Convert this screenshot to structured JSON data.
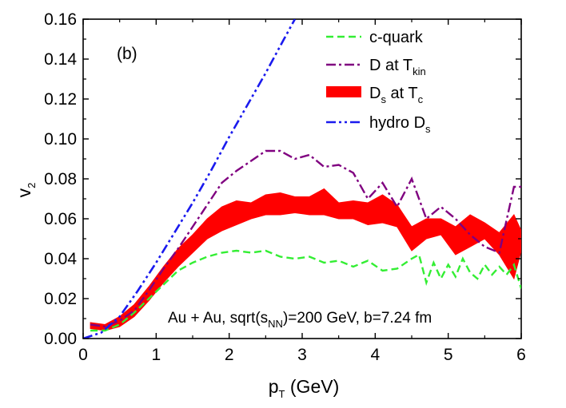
{
  "chart_data": {
    "type": "line",
    "panel_label": "(b)",
    "xlabel_main": "p",
    "xlabel_sub": "T",
    "xlabel_unit": " (GeV)",
    "ylabel_main": "v",
    "ylabel_sub": "2",
    "xlim": [
      0,
      6
    ],
    "ylim": [
      0,
      0.16
    ],
    "x_ticks": [
      0,
      1,
      2,
      3,
      4,
      5,
      6
    ],
    "x_tick_labels": [
      "0",
      "1",
      "2",
      "3",
      "4",
      "5",
      "6"
    ],
    "y_ticks": [
      0,
      0.02,
      0.04,
      0.06,
      0.08,
      0.1,
      0.12,
      0.14,
      0.16
    ],
    "y_tick_labels": [
      "0.00",
      "0.02",
      "0.04",
      "0.06",
      "0.08",
      "0.10",
      "0.12",
      "0.14",
      "0.16"
    ],
    "grid": false,
    "legend_position": "top-right",
    "annotation": {
      "text1": "Au + Au, sqrt(s",
      "sub": "NN",
      "text2": ")=200 GeV, b=7.24 fm"
    },
    "series": [
      {
        "key": "cquark",
        "name": "c-quark",
        "legend_main": "c-quark",
        "legend_sub": "",
        "legend_tail": "",
        "color": "#33ee33",
        "style": "dash",
        "x": [
          0.1,
          0.3,
          0.5,
          0.7,
          0.9,
          1.1,
          1.3,
          1.5,
          1.7,
          1.9,
          2.1,
          2.3,
          2.5,
          2.7,
          2.9,
          3.1,
          3.3,
          3.5,
          3.7,
          3.9,
          4.1,
          4.3,
          4.5,
          4.6,
          4.7,
          4.8,
          4.9,
          5.0,
          5.1,
          5.2,
          5.3,
          5.4,
          5.5,
          5.6,
          5.7,
          5.8,
          5.9,
          6.0
        ],
        "y": [
          0.004,
          0.004,
          0.007,
          0.013,
          0.02,
          0.027,
          0.034,
          0.038,
          0.041,
          0.043,
          0.044,
          0.043,
          0.044,
          0.041,
          0.04,
          0.041,
          0.038,
          0.039,
          0.036,
          0.039,
          0.034,
          0.035,
          0.04,
          0.042,
          0.028,
          0.038,
          0.03,
          0.037,
          0.031,
          0.04,
          0.033,
          0.03,
          0.037,
          0.032,
          0.036,
          0.032,
          0.037,
          0.025
        ]
      },
      {
        "key": "dtkin",
        "name": "D at Tkin",
        "legend_main": "D at T",
        "legend_sub": "kin",
        "legend_tail": "",
        "color": "#800080",
        "style": "dashdot",
        "x": [
          0.1,
          0.3,
          0.5,
          0.7,
          0.9,
          1.1,
          1.3,
          1.5,
          1.7,
          1.9,
          2.1,
          2.3,
          2.5,
          2.7,
          2.9,
          3.1,
          3.3,
          3.5,
          3.7,
          3.9,
          4.1,
          4.3,
          4.5,
          4.7,
          4.9,
          5.1,
          5.3,
          5.5,
          5.7,
          5.9,
          6.0
        ],
        "y": [
          0.007,
          0.006,
          0.009,
          0.014,
          0.024,
          0.035,
          0.045,
          0.056,
          0.067,
          0.078,
          0.084,
          0.089,
          0.094,
          0.094,
          0.09,
          0.092,
          0.086,
          0.087,
          0.083,
          0.07,
          0.078,
          0.066,
          0.08,
          0.06,
          0.066,
          0.06,
          0.052,
          0.046,
          0.043,
          0.076,
          0.076
        ]
      },
      {
        "key": "dstc",
        "name": "Ds at Tc",
        "legend_main": "D",
        "legend_sub": "s",
        "legend_tail": " at T",
        "legend_sub2": "c",
        "color": "#ff0000",
        "style": "band",
        "x": [
          0.1,
          0.3,
          0.5,
          0.7,
          0.9,
          1.1,
          1.3,
          1.5,
          1.7,
          1.9,
          2.1,
          2.3,
          2.5,
          2.7,
          2.9,
          3.1,
          3.3,
          3.5,
          3.7,
          3.9,
          4.1,
          4.3,
          4.5,
          4.7,
          4.9,
          5.1,
          5.3,
          5.5,
          5.7,
          5.9,
          6.0
        ],
        "upper": [
          0.008,
          0.007,
          0.011,
          0.017,
          0.026,
          0.036,
          0.045,
          0.052,
          0.06,
          0.066,
          0.069,
          0.068,
          0.072,
          0.073,
          0.071,
          0.071,
          0.075,
          0.068,
          0.069,
          0.068,
          0.072,
          0.067,
          0.056,
          0.06,
          0.06,
          0.056,
          0.062,
          0.058,
          0.053,
          0.062,
          0.054
        ],
        "lower": [
          0.005,
          0.004,
          0.006,
          0.011,
          0.019,
          0.028,
          0.036,
          0.043,
          0.05,
          0.054,
          0.057,
          0.06,
          0.062,
          0.062,
          0.063,
          0.062,
          0.062,
          0.06,
          0.06,
          0.057,
          0.058,
          0.056,
          0.044,
          0.05,
          0.052,
          0.042,
          0.046,
          0.05,
          0.042,
          0.03,
          0.044
        ]
      },
      {
        "key": "hydro",
        "name": "hydro Ds",
        "legend_main": "hydro D",
        "legend_sub": "s",
        "legend_tail": "",
        "color": "#1a1aee",
        "style": "dashdotdot",
        "x": [
          0.0,
          0.25,
          0.5,
          0.75,
          1.0,
          1.25,
          1.5,
          1.75,
          2.0,
          2.25,
          2.5,
          2.75,
          2.9
        ],
        "y": [
          0.0,
          0.003,
          0.011,
          0.024,
          0.038,
          0.053,
          0.068,
          0.084,
          0.101,
          0.117,
          0.133,
          0.15,
          0.16
        ]
      }
    ]
  }
}
